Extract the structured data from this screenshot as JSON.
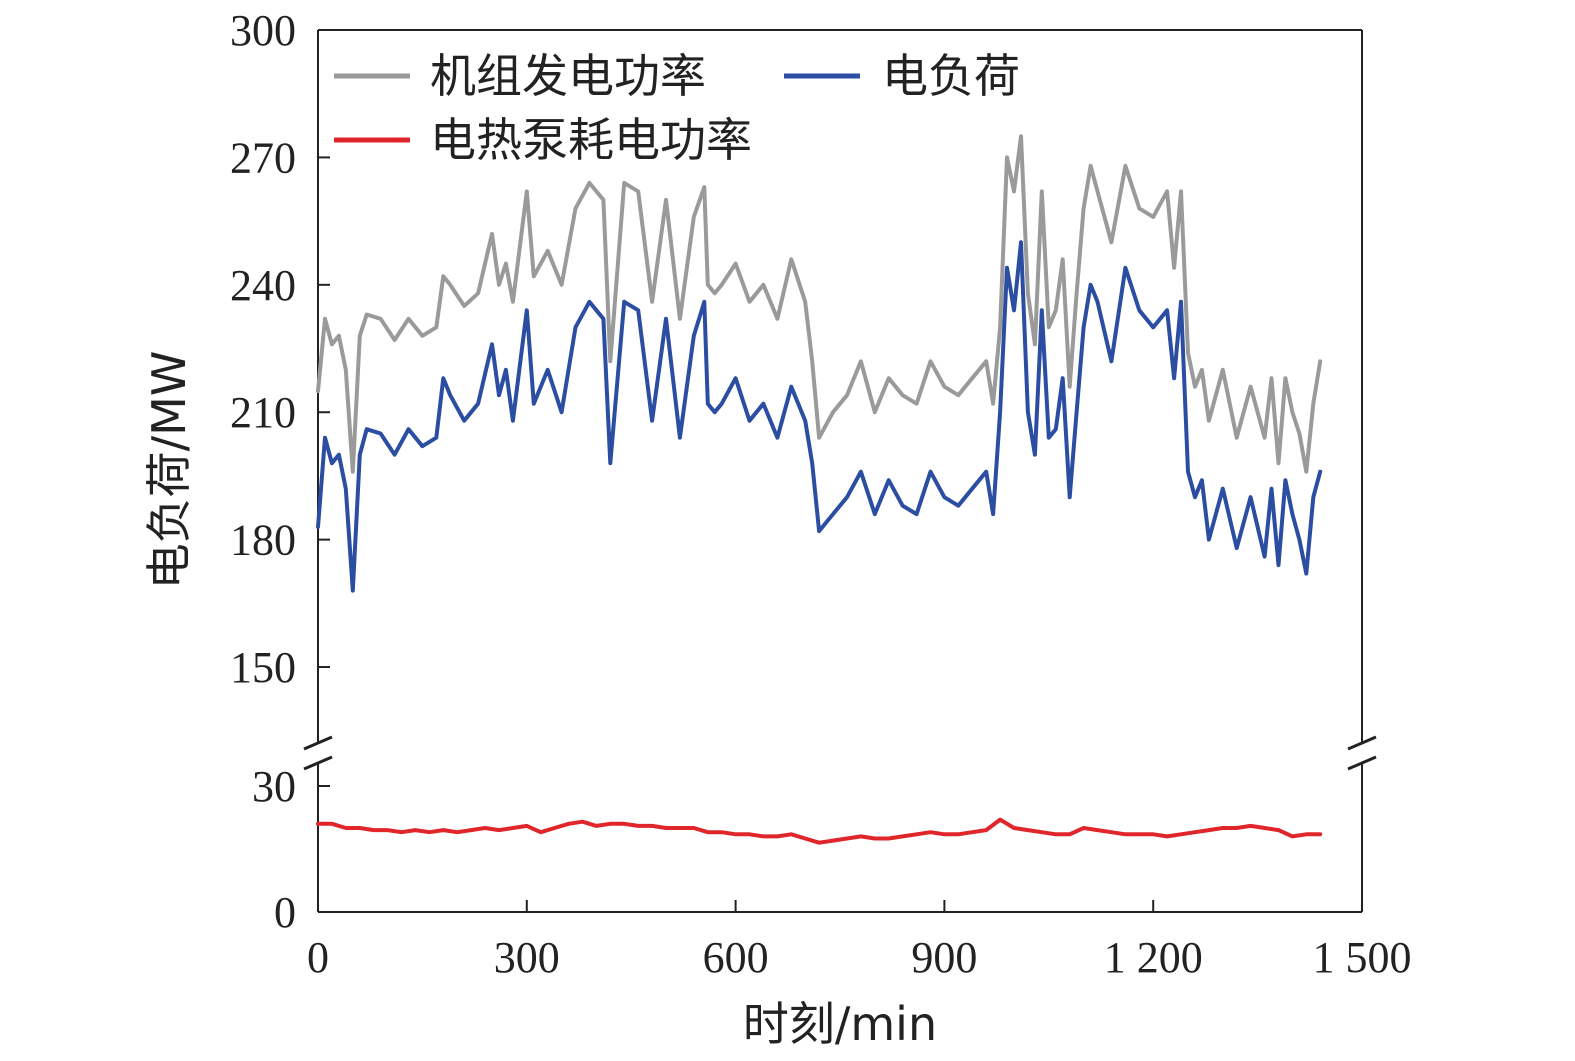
{
  "chart_data": {
    "type": "line",
    "xlabel": "时刻/min",
    "ylabel": "电负荷/MW",
    "xlim": [
      0,
      1500
    ],
    "x_ticks": [
      0,
      300,
      600,
      900,
      1200,
      1500
    ],
    "x_tick_labels": [
      "0",
      "300",
      "600",
      "900",
      "1 200",
      "1 500"
    ],
    "y_axis_break": {
      "upper_range": [
        138,
        300
      ],
      "lower_range": [
        0,
        30
      ],
      "upper_ticks": [
        150,
        180,
        210,
        240,
        270,
        300
      ],
      "lower_ticks": [
        0,
        30
      ]
    },
    "y_tick_labels": [
      "0",
      "30",
      "150",
      "180",
      "210",
      "240",
      "270",
      "300"
    ],
    "grid": false,
    "legend_position": "top-left",
    "colors": {
      "generation": "#9a9a9a",
      "load": "#2b4ea2",
      "heat_pump": "#e0262b"
    },
    "series": [
      {
        "name": "机组发电功率",
        "key": "generation",
        "x": [
          0,
          10,
          20,
          30,
          40,
          50,
          60,
          70,
          90,
          110,
          130,
          150,
          170,
          180,
          190,
          210,
          230,
          250,
          260,
          270,
          280,
          300,
          310,
          330,
          350,
          370,
          390,
          410,
          420,
          440,
          460,
          480,
          500,
          520,
          540,
          555,
          560,
          570,
          580,
          600,
          620,
          640,
          660,
          680,
          700,
          710,
          720,
          740,
          760,
          780,
          800,
          820,
          840,
          860,
          880,
          900,
          920,
          940,
          960,
          970,
          980,
          990,
          1000,
          1010,
          1020,
          1030,
          1040,
          1050,
          1060,
          1070,
          1080,
          1090,
          1100,
          1110,
          1120,
          1140,
          1160,
          1180,
          1200,
          1220,
          1230,
          1240,
          1250,
          1260,
          1270,
          1280,
          1300,
          1320,
          1340,
          1360,
          1370,
          1380,
          1390,
          1400,
          1410,
          1420,
          1430,
          1440
        ],
        "values": [
          215,
          232,
          226,
          228,
          220,
          196,
          228,
          233,
          232,
          227,
          232,
          228,
          230,
          242,
          240,
          235,
          238,
          252,
          240,
          245,
          236,
          262,
          242,
          248,
          240,
          258,
          264,
          260,
          222,
          264,
          262,
          236,
          260,
          232,
          256,
          263,
          240,
          238,
          240,
          245,
          236,
          240,
          232,
          246,
          236,
          222,
          204,
          210,
          214,
          222,
          210,
          218,
          214,
          212,
          222,
          216,
          214,
          218,
          222,
          212,
          230,
          270,
          262,
          275,
          238,
          226,
          262,
          230,
          234,
          246,
          216,
          238,
          258,
          268,
          262,
          250,
          268,
          258,
          256,
          262,
          244,
          262,
          224,
          216,
          220,
          208,
          220,
          204,
          216,
          204,
          218,
          198,
          218,
          210,
          205,
          196,
          212,
          222
        ]
      },
      {
        "name": "电负荷",
        "key": "load",
        "x": [
          0,
          10,
          20,
          30,
          40,
          50,
          60,
          70,
          90,
          110,
          130,
          150,
          170,
          180,
          190,
          210,
          230,
          250,
          260,
          270,
          280,
          300,
          310,
          330,
          350,
          370,
          390,
          410,
          420,
          440,
          460,
          480,
          500,
          520,
          540,
          555,
          560,
          570,
          580,
          600,
          620,
          640,
          660,
          680,
          700,
          710,
          720,
          740,
          760,
          780,
          800,
          820,
          840,
          860,
          880,
          900,
          920,
          940,
          960,
          970,
          980,
          990,
          1000,
          1010,
          1020,
          1030,
          1040,
          1050,
          1060,
          1070,
          1080,
          1090,
          1100,
          1110,
          1120,
          1140,
          1160,
          1180,
          1200,
          1220,
          1230,
          1240,
          1250,
          1260,
          1270,
          1280,
          1300,
          1320,
          1340,
          1360,
          1370,
          1380,
          1390,
          1400,
          1410,
          1420,
          1430,
          1440
        ],
        "values": [
          183,
          204,
          198,
          200,
          192,
          168,
          200,
          206,
          205,
          200,
          206,
          202,
          204,
          218,
          214,
          208,
          212,
          226,
          214,
          220,
          208,
          234,
          212,
          220,
          210,
          230,
          236,
          232,
          198,
          236,
          234,
          208,
          232,
          204,
          228,
          236,
          212,
          210,
          212,
          218,
          208,
          212,
          204,
          216,
          208,
          198,
          182,
          186,
          190,
          196,
          186,
          194,
          188,
          186,
          196,
          190,
          188,
          192,
          196,
          186,
          210,
          244,
          234,
          250,
          210,
          200,
          234,
          204,
          206,
          218,
          190,
          210,
          230,
          240,
          236,
          222,
          244,
          234,
          230,
          234,
          218,
          236,
          196,
          190,
          194,
          180,
          192,
          178,
          190,
          176,
          192,
          174,
          194,
          186,
          180,
          172,
          190,
          196
        ]
      },
      {
        "name": "电热泵耗电功率",
        "key": "heat_pump",
        "x": [
          0,
          20,
          40,
          60,
          80,
          100,
          120,
          140,
          160,
          180,
          200,
          220,
          240,
          260,
          280,
          300,
          320,
          340,
          360,
          380,
          400,
          420,
          440,
          460,
          480,
          500,
          520,
          540,
          560,
          580,
          600,
          620,
          640,
          660,
          680,
          700,
          720,
          740,
          760,
          780,
          800,
          820,
          840,
          860,
          880,
          900,
          920,
          940,
          960,
          980,
          1000,
          1020,
          1040,
          1060,
          1080,
          1100,
          1120,
          1140,
          1160,
          1180,
          1200,
          1220,
          1240,
          1260,
          1280,
          1300,
          1320,
          1340,
          1360,
          1380,
          1400,
          1420,
          1440
        ],
        "values": [
          21,
          21,
          20,
          20,
          19.5,
          19.5,
          19,
          19.5,
          19,
          19.5,
          19,
          19.5,
          20,
          19.5,
          20,
          20.5,
          19,
          20,
          21,
          21.5,
          20.5,
          21,
          21,
          20.5,
          20.5,
          20,
          20,
          20,
          19,
          19,
          18.5,
          18.5,
          18,
          18,
          18.5,
          17.5,
          16.5,
          17,
          17.5,
          18,
          17.5,
          17.5,
          18,
          18.5,
          19,
          18.5,
          18.5,
          19,
          19.5,
          22,
          20,
          19.5,
          19,
          18.5,
          18.5,
          20,
          19.5,
          19,
          18.5,
          18.5,
          18.5,
          18,
          18.5,
          19,
          19.5,
          20,
          20,
          20.5,
          20,
          19.5,
          18,
          18.5,
          18.5
        ]
      }
    ]
  }
}
